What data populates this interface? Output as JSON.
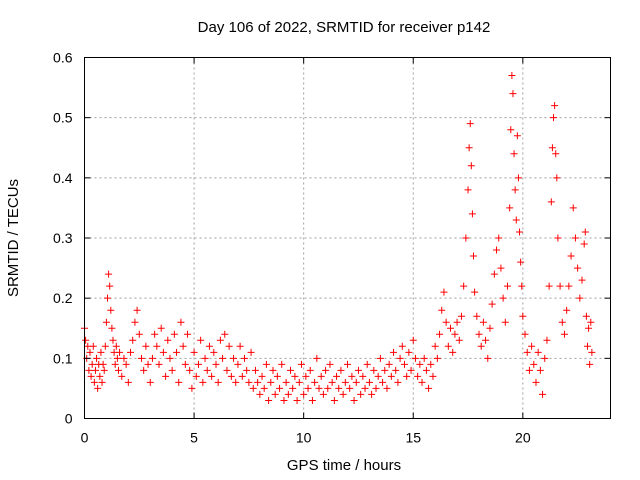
{
  "chart_data": {
    "type": "scatter",
    "title": "Day 106 of 2022, SRMTID for receiver p142",
    "xlabel": "GPS time / hours",
    "ylabel": "SRMTID / TECUs",
    "xlim": [
      0,
      24
    ],
    "ylim": [
      0,
      0.6
    ],
    "x_ticks": [
      0,
      5,
      10,
      15,
      20
    ],
    "x_tick_labels": [
      "0",
      "5",
      "10",
      "15",
      "20"
    ],
    "y_ticks": [
      0,
      0.1,
      0.2,
      0.3,
      0.4,
      0.5,
      0.6
    ],
    "y_tick_labels": [
      "0",
      "0.1",
      "0.2",
      "0.3",
      "0.4",
      "0.5",
      "0.6"
    ],
    "grid": true,
    "marker": "plus",
    "color": "#ff0000",
    "series": [
      {
        "name": "SRMTID",
        "points": [
          [
            0.0,
            0.15
          ],
          [
            0.05,
            0.13
          ],
          [
            0.1,
            0.1
          ],
          [
            0.15,
            0.12
          ],
          [
            0.2,
            0.08
          ],
          [
            0.25,
            0.11
          ],
          [
            0.3,
            0.07
          ],
          [
            0.35,
            0.09
          ],
          [
            0.4,
            0.12
          ],
          [
            0.45,
            0.06
          ],
          [
            0.5,
            0.08
          ],
          [
            0.55,
            0.1
          ],
          [
            0.6,
            0.05
          ],
          [
            0.65,
            0.09
          ],
          [
            0.7,
            0.07
          ],
          [
            0.75,
            0.11
          ],
          [
            0.8,
            0.06
          ],
          [
            0.85,
            0.09
          ],
          [
            0.9,
            0.08
          ],
          [
            0.95,
            0.12
          ],
          [
            1.0,
            0.16
          ],
          [
            1.05,
            0.2
          ],
          [
            1.1,
            0.24
          ],
          [
            1.15,
            0.22
          ],
          [
            1.2,
            0.18
          ],
          [
            1.25,
            0.15
          ],
          [
            1.3,
            0.13
          ],
          [
            1.35,
            0.11
          ],
          [
            1.4,
            0.09
          ],
          [
            1.45,
            0.12
          ],
          [
            1.5,
            0.1
          ],
          [
            1.55,
            0.08
          ],
          [
            1.6,
            0.11
          ],
          [
            1.7,
            0.07
          ],
          [
            1.8,
            0.1
          ],
          [
            1.9,
            0.09
          ],
          [
            2.0,
            0.06
          ],
          [
            2.1,
            0.11
          ],
          [
            2.2,
            0.13
          ],
          [
            2.3,
            0.16
          ],
          [
            2.4,
            0.18
          ],
          [
            2.5,
            0.14
          ],
          [
            2.6,
            0.1
          ],
          [
            2.7,
            0.08
          ],
          [
            2.8,
            0.12
          ],
          [
            2.9,
            0.09
          ],
          [
            3.0,
            0.06
          ],
          [
            3.1,
            0.1
          ],
          [
            3.2,
            0.14
          ],
          [
            3.3,
            0.12
          ],
          [
            3.4,
            0.09
          ],
          [
            3.5,
            0.15
          ],
          [
            3.6,
            0.11
          ],
          [
            3.7,
            0.07
          ],
          [
            3.8,
            0.13
          ],
          [
            3.9,
            0.1
          ],
          [
            4.0,
            0.08
          ],
          [
            4.1,
            0.14
          ],
          [
            4.2,
            0.11
          ],
          [
            4.3,
            0.06
          ],
          [
            4.4,
            0.16
          ],
          [
            4.5,
            0.12
          ],
          [
            4.6,
            0.09
          ],
          [
            4.7,
            0.14
          ],
          [
            4.8,
            0.08
          ],
          [
            4.9,
            0.05
          ],
          [
            5.0,
            0.11
          ],
          [
            5.1,
            0.07
          ],
          [
            5.2,
            0.09
          ],
          [
            5.3,
            0.13
          ],
          [
            5.4,
            0.06
          ],
          [
            5.5,
            0.1
          ],
          [
            5.6,
            0.08
          ],
          [
            5.7,
            0.12
          ],
          [
            5.8,
            0.07
          ],
          [
            5.9,
            0.11
          ],
          [
            6.0,
            0.09
          ],
          [
            6.1,
            0.06
          ],
          [
            6.2,
            0.13
          ],
          [
            6.3,
            0.1
          ],
          [
            6.4,
            0.14
          ],
          [
            6.5,
            0.08
          ],
          [
            6.6,
            0.12
          ],
          [
            6.7,
            0.07
          ],
          [
            6.8,
            0.1
          ],
          [
            6.9,
            0.06
          ],
          [
            7.0,
            0.09
          ],
          [
            7.1,
            0.12
          ],
          [
            7.2,
            0.07
          ],
          [
            7.3,
            0.1
          ],
          [
            7.4,
            0.08
          ],
          [
            7.5,
            0.06
          ],
          [
            7.6,
            0.11
          ],
          [
            7.7,
            0.05
          ],
          [
            7.8,
            0.08
          ],
          [
            7.9,
            0.06
          ],
          [
            8.0,
            0.04
          ],
          [
            8.1,
            0.07
          ],
          [
            8.2,
            0.05
          ],
          [
            8.3,
            0.09
          ],
          [
            8.4,
            0.03
          ],
          [
            8.5,
            0.06
          ],
          [
            8.6,
            0.08
          ],
          [
            8.7,
            0.04
          ],
          [
            8.8,
            0.07
          ],
          [
            8.9,
            0.05
          ],
          [
            9.0,
            0.09
          ],
          [
            9.1,
            0.03
          ],
          [
            9.2,
            0.06
          ],
          [
            9.3,
            0.04
          ],
          [
            9.4,
            0.08
          ],
          [
            9.5,
            0.05
          ],
          [
            9.6,
            0.07
          ],
          [
            9.7,
            0.03
          ],
          [
            9.8,
            0.06
          ],
          [
            9.9,
            0.09
          ],
          [
            10.0,
            0.04
          ],
          [
            10.1,
            0.07
          ],
          [
            10.2,
            0.05
          ],
          [
            10.3,
            0.08
          ],
          [
            10.4,
            0.03
          ],
          [
            10.5,
            0.06
          ],
          [
            10.6,
            0.1
          ],
          [
            10.7,
            0.05
          ],
          [
            10.8,
            0.07
          ],
          [
            10.9,
            0.04
          ],
          [
            11.0,
            0.08
          ],
          [
            11.1,
            0.05
          ],
          [
            11.2,
            0.09
          ],
          [
            11.3,
            0.06
          ],
          [
            11.4,
            0.03
          ],
          [
            11.5,
            0.07
          ],
          [
            11.6,
            0.05
          ],
          [
            11.7,
            0.08
          ],
          [
            11.8,
            0.04
          ],
          [
            11.9,
            0.06
          ],
          [
            12.0,
            0.09
          ],
          [
            12.1,
            0.05
          ],
          [
            12.2,
            0.07
          ],
          [
            12.3,
            0.03
          ],
          [
            12.4,
            0.06
          ],
          [
            12.5,
            0.08
          ],
          [
            12.6,
            0.04
          ],
          [
            12.7,
            0.07
          ],
          [
            12.8,
            0.05
          ],
          [
            12.9,
            0.09
          ],
          [
            13.0,
            0.06
          ],
          [
            13.1,
            0.04
          ],
          [
            13.2,
            0.08
          ],
          [
            13.3,
            0.05
          ],
          [
            13.4,
            0.07
          ],
          [
            13.5,
            0.1
          ],
          [
            13.6,
            0.06
          ],
          [
            13.7,
            0.08
          ],
          [
            13.8,
            0.05
          ],
          [
            13.9,
            0.09
          ],
          [
            14.0,
            0.07
          ],
          [
            14.1,
            0.11
          ],
          [
            14.2,
            0.08
          ],
          [
            14.3,
            0.06
          ],
          [
            14.4,
            0.1
          ],
          [
            14.5,
            0.12
          ],
          [
            14.6,
            0.09
          ],
          [
            14.7,
            0.07
          ],
          [
            14.8,
            0.11
          ],
          [
            14.9,
            0.08
          ],
          [
            15.0,
            0.13
          ],
          [
            15.1,
            0.1
          ],
          [
            15.2,
            0.07
          ],
          [
            15.3,
            0.09
          ],
          [
            15.4,
            0.06
          ],
          [
            15.5,
            0.1
          ],
          [
            15.6,
            0.08
          ],
          [
            15.7,
            0.05
          ],
          [
            15.8,
            0.09
          ],
          [
            15.9,
            0.07
          ],
          [
            16.0,
            0.12
          ],
          [
            16.1,
            0.1
          ],
          [
            16.2,
            0.14
          ],
          [
            16.3,
            0.18
          ],
          [
            16.4,
            0.21
          ],
          [
            16.5,
            0.16
          ],
          [
            16.6,
            0.12
          ],
          [
            16.7,
            0.15
          ],
          [
            16.8,
            0.11
          ],
          [
            16.9,
            0.14
          ],
          [
            17.0,
            0.16
          ],
          [
            17.1,
            0.13
          ],
          [
            17.2,
            0.17
          ],
          [
            17.3,
            0.22
          ],
          [
            17.4,
            0.3
          ],
          [
            17.5,
            0.38
          ],
          [
            17.55,
            0.45
          ],
          [
            17.6,
            0.49
          ],
          [
            17.65,
            0.42
          ],
          [
            17.7,
            0.34
          ],
          [
            17.75,
            0.27
          ],
          [
            17.8,
            0.21
          ],
          [
            17.9,
            0.17
          ],
          [
            18.0,
            0.14
          ],
          [
            18.1,
            0.12
          ],
          [
            18.2,
            0.16
          ],
          [
            18.3,
            0.13
          ],
          [
            18.4,
            0.1
          ],
          [
            18.5,
            0.15
          ],
          [
            18.6,
            0.19
          ],
          [
            18.7,
            0.24
          ],
          [
            18.8,
            0.28
          ],
          [
            18.9,
            0.3
          ],
          [
            19.0,
            0.25
          ],
          [
            19.1,
            0.2
          ],
          [
            19.2,
            0.16
          ],
          [
            19.3,
            0.22
          ],
          [
            19.4,
            0.35
          ],
          [
            19.45,
            0.48
          ],
          [
            19.5,
            0.57
          ],
          [
            19.55,
            0.54
          ],
          [
            19.6,
            0.44
          ],
          [
            19.65,
            0.38
          ],
          [
            19.7,
            0.33
          ],
          [
            19.75,
            0.47
          ],
          [
            19.8,
            0.4
          ],
          [
            19.85,
            0.31
          ],
          [
            19.9,
            0.26
          ],
          [
            19.95,
            0.22
          ],
          [
            20.0,
            0.17
          ],
          [
            20.1,
            0.14
          ],
          [
            20.2,
            0.11
          ],
          [
            20.3,
            0.08
          ],
          [
            20.4,
            0.12
          ],
          [
            20.5,
            0.09
          ],
          [
            20.6,
            0.06
          ],
          [
            20.7,
            0.11
          ],
          [
            20.8,
            0.08
          ],
          [
            20.9,
            0.04
          ],
          [
            21.0,
            0.1
          ],
          [
            21.1,
            0.13
          ],
          [
            21.2,
            0.22
          ],
          [
            21.3,
            0.36
          ],
          [
            21.35,
            0.45
          ],
          [
            21.4,
            0.5
          ],
          [
            21.45,
            0.52
          ],
          [
            21.5,
            0.44
          ],
          [
            21.55,
            0.4
          ],
          [
            21.6,
            0.3
          ],
          [
            21.7,
            0.22
          ],
          [
            21.8,
            0.16
          ],
          [
            21.9,
            0.14
          ],
          [
            22.0,
            0.18
          ],
          [
            22.1,
            0.22
          ],
          [
            22.2,
            0.27
          ],
          [
            22.3,
            0.35
          ],
          [
            22.4,
            0.3
          ],
          [
            22.5,
            0.25
          ],
          [
            22.6,
            0.2
          ],
          [
            22.7,
            0.23
          ],
          [
            22.8,
            0.29
          ],
          [
            22.85,
            0.31
          ],
          [
            22.9,
            0.17
          ],
          [
            22.95,
            0.12
          ],
          [
            23.0,
            0.15
          ],
          [
            23.05,
            0.09
          ],
          [
            23.1,
            0.16
          ],
          [
            23.15,
            0.11
          ]
        ]
      }
    ]
  }
}
